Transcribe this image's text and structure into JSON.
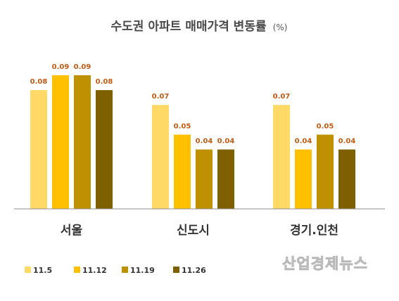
{
  "title": "수도권 아파트 매매가격 변동률",
  "title_unit": "(%)",
  "watermark": "산업경제뉴스",
  "colors": {
    "series": [
      "#FFD966",
      "#FFC000",
      "#BF9000",
      "#7F6000"
    ],
    "value_label": "#C55A11",
    "axis": "#8c8c8c"
  },
  "chart_data": {
    "type": "bar",
    "title": "수도권 아파트 매매가격 변동률 (%)",
    "categories": [
      "서울",
      "신도시",
      "경기.인천"
    ],
    "series": [
      {
        "name": "11.5",
        "values": [
          0.08,
          0.07,
          0.07
        ]
      },
      {
        "name": "11.12",
        "values": [
          0.09,
          0.05,
          0.04
        ]
      },
      {
        "name": "11.19",
        "values": [
          0.09,
          0.04,
          0.05
        ]
      },
      {
        "name": "11.26",
        "values": [
          0.08,
          0.04,
          0.04
        ]
      }
    ],
    "ylim": [
      0,
      0.09
    ],
    "grid": false,
    "legend": "bottom-left"
  }
}
